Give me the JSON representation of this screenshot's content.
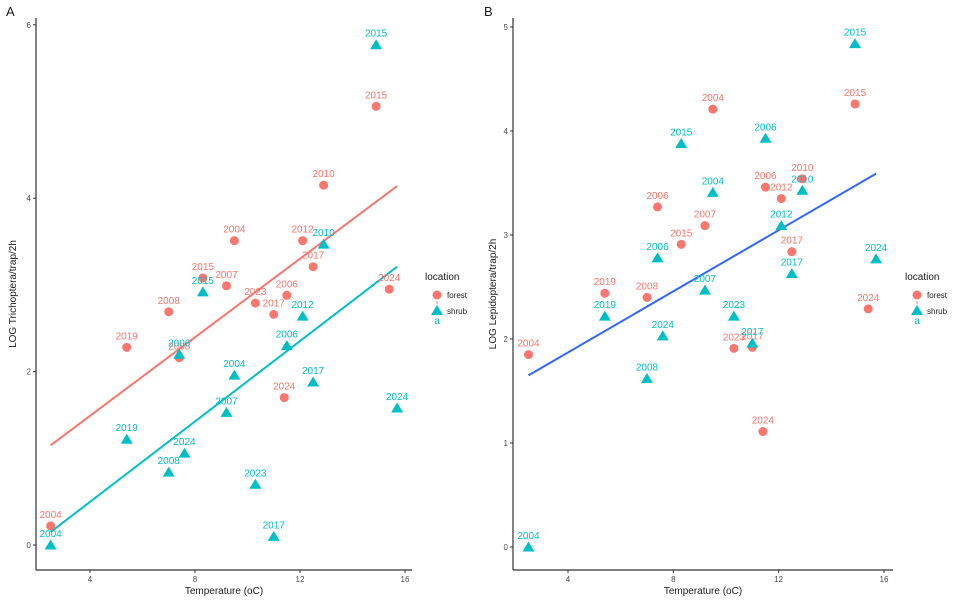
{
  "colors": {
    "forest": "#F8766D",
    "shrub": "#00BFC4",
    "fit_B": "#3366FF",
    "axis": "#333333"
  },
  "chart_data": [
    {
      "type": "scatter",
      "panel": "A",
      "title": "",
      "xlabel": "Temperature (oC)",
      "ylabel": "LOG Trichoptera/trap/2h",
      "xlim": [
        1.8,
        16.2
      ],
      "ylim": [
        -0.85,
        6.0
      ],
      "xticks": [
        4,
        8,
        12,
        16
      ],
      "yticks": [
        0,
        2,
        4,
        6
      ],
      "grid": false,
      "legend": {
        "title": "location",
        "entries": [
          "forest",
          "shrub"
        ],
        "extra": "a",
        "position": "right"
      },
      "series": [
        {
          "name": "forest",
          "marker": "circle",
          "points": [
            {
              "x": 2.5,
              "y": 0.22,
              "label": "2004"
            },
            {
              "x": 5.4,
              "y": 2.28,
              "label": "2019"
            },
            {
              "x": 7.0,
              "y": 2.69,
              "label": "2008"
            },
            {
              "x": 7.4,
              "y": 2.16,
              "label": "2008"
            },
            {
              "x": 8.3,
              "y": 3.08,
              "label": "2015"
            },
            {
              "x": 9.2,
              "y": 2.99,
              "label": "2007"
            },
            {
              "x": 9.5,
              "y": 3.51,
              "label": "2004"
            },
            {
              "x": 10.3,
              "y": 2.79,
              "label": "2023"
            },
            {
              "x": 11.0,
              "y": 2.66,
              "label": "2017"
            },
            {
              "x": 11.4,
              "y": 1.7,
              "label": "2024"
            },
            {
              "x": 11.5,
              "y": 2.88,
              "label": "2006"
            },
            {
              "x": 12.1,
              "y": 3.51,
              "label": "2012"
            },
            {
              "x": 12.5,
              "y": 3.21,
              "label": "2017"
            },
            {
              "x": 12.9,
              "y": 4.15,
              "label": "2010"
            },
            {
              "x": 14.9,
              "y": 5.06,
              "label": "2015"
            },
            {
              "x": 15.4,
              "y": 2.95,
              "label": "2024"
            }
          ],
          "fit": {
            "x": [
              2.5,
              15.7
            ],
            "y": [
              1.15,
              4.14
            ]
          }
        },
        {
          "name": "shrub",
          "marker": "triangle",
          "points": [
            {
              "x": 2.5,
              "y": 0.0,
              "label": "2004"
            },
            {
              "x": 5.4,
              "y": 1.22,
              "label": "2019"
            },
            {
              "x": 7.0,
              "y": 0.84,
              "label": "2008"
            },
            {
              "x": 7.4,
              "y": 2.2,
              "label": "2006"
            },
            {
              "x": 7.6,
              "y": 1.06,
              "label": "2024"
            },
            {
              "x": 8.3,
              "y": 2.92,
              "label": "2015"
            },
            {
              "x": 9.2,
              "y": 1.53,
              "label": "2007"
            },
            {
              "x": 9.5,
              "y": 1.96,
              "label": "2004"
            },
            {
              "x": 10.3,
              "y": 0.7,
              "label": "2023"
            },
            {
              "x": 11.0,
              "y": 0.1,
              "label": "2017"
            },
            {
              "x": 11.5,
              "y": 2.3,
              "label": "2006"
            },
            {
              "x": 12.1,
              "y": 2.64,
              "label": "2012"
            },
            {
              "x": 12.5,
              "y": 1.88,
              "label": "2017"
            },
            {
              "x": 12.9,
              "y": 3.47,
              "label": "2010"
            },
            {
              "x": 14.9,
              "y": 5.77,
              "label": "2015"
            },
            {
              "x": 15.7,
              "y": 1.58,
              "label": "2024"
            }
          ],
          "fit": {
            "x": [
              2.5,
              15.7
            ],
            "y": [
              0.15,
              3.21
            ]
          }
        }
      ]
    },
    {
      "type": "scatter",
      "panel": "B",
      "title": "",
      "xlabel": "Temperature (oC)",
      "ylabel": "LOG Lepidoptera/trap/2h",
      "xlim": [
        1.8,
        16.3
      ],
      "ylim": [
        -0.25,
        5.05
      ],
      "xticks": [
        4,
        8,
        12,
        16
      ],
      "yticks": [
        0,
        1,
        2,
        3,
        4,
        5
      ],
      "grid": false,
      "legend": {
        "title": "location",
        "entries": [
          "forest",
          "shrub"
        ],
        "extra": "a",
        "position": "right"
      },
      "series": [
        {
          "name": "forest",
          "marker": "circle",
          "points": [
            {
              "x": 2.5,
              "y": 1.85,
              "label": "2004"
            },
            {
              "x": 5.4,
              "y": 2.44,
              "label": "2019"
            },
            {
              "x": 7.0,
              "y": 2.4,
              "label": "2008"
            },
            {
              "x": 7.4,
              "y": 3.27,
              "label": "2006"
            },
            {
              "x": 8.3,
              "y": 2.91,
              "label": "2015"
            },
            {
              "x": 9.2,
              "y": 3.09,
              "label": "2007"
            },
            {
              "x": 9.5,
              "y": 4.21,
              "label": "2004"
            },
            {
              "x": 10.3,
              "y": 1.91,
              "label": "2023"
            },
            {
              "x": 11.0,
              "y": 1.92,
              "label": "2017"
            },
            {
              "x": 11.4,
              "y": 1.11,
              "label": "2024"
            },
            {
              "x": 11.5,
              "y": 3.46,
              "label": "2006"
            },
            {
              "x": 12.1,
              "y": 3.35,
              "label": "2012"
            },
            {
              "x": 12.5,
              "y": 2.84,
              "label": "2017"
            },
            {
              "x": 12.9,
              "y": 3.54,
              "label": "2010"
            },
            {
              "x": 14.9,
              "y": 4.26,
              "label": "2015"
            },
            {
              "x": 15.4,
              "y": 2.29,
              "label": "2024"
            }
          ]
        },
        {
          "name": "shrub",
          "marker": "triangle",
          "points": [
            {
              "x": 2.5,
              "y": 0.0,
              "label": "2004"
            },
            {
              "x": 5.4,
              "y": 2.22,
              "label": "2019"
            },
            {
              "x": 7.0,
              "y": 1.62,
              "label": "2008"
            },
            {
              "x": 7.4,
              "y": 2.78,
              "label": "2006"
            },
            {
              "x": 7.6,
              "y": 2.03,
              "label": "2024"
            },
            {
              "x": 8.3,
              "y": 3.88,
              "label": "2015"
            },
            {
              "x": 9.2,
              "y": 2.47,
              "label": "2007"
            },
            {
              "x": 9.5,
              "y": 3.41,
              "label": "2004"
            },
            {
              "x": 10.3,
              "y": 2.22,
              "label": "2023"
            },
            {
              "x": 11.0,
              "y": 1.96,
              "label": "2017"
            },
            {
              "x": 11.5,
              "y": 3.93,
              "label": "2006"
            },
            {
              "x": 12.1,
              "y": 3.09,
              "label": "2012"
            },
            {
              "x": 12.5,
              "y": 2.63,
              "label": "2017"
            },
            {
              "x": 12.9,
              "y": 3.43,
              "label": "2010"
            },
            {
              "x": 14.9,
              "y": 4.84,
              "label": "2015"
            },
            {
              "x": 15.7,
              "y": 2.77,
              "label": "2024"
            }
          ]
        }
      ],
      "fit": {
        "name": "all",
        "x": [
          2.5,
          15.7
        ],
        "y": [
          1.65,
          3.59
        ]
      }
    }
  ]
}
